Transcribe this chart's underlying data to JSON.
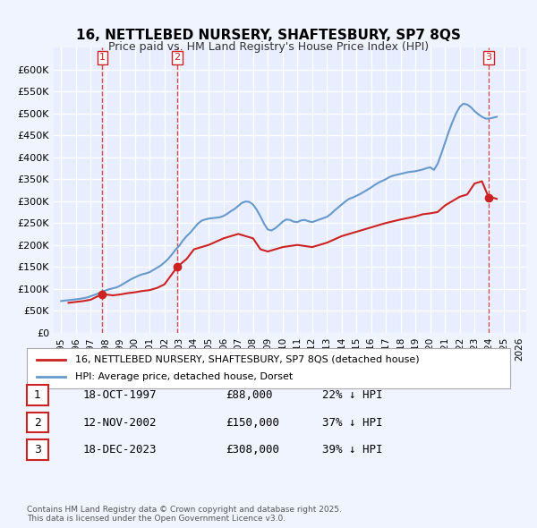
{
  "title": "16, NETTLEBED NURSERY, SHAFTESBURY, SP7 8QS",
  "subtitle": "Price paid vs. HM Land Registry's House Price Index (HPI)",
  "ylabel": "",
  "ylim": [
    0,
    650000
  ],
  "yticks": [
    0,
    50000,
    100000,
    150000,
    200000,
    250000,
    300000,
    350000,
    400000,
    450000,
    500000,
    550000,
    600000
  ],
  "ytick_labels": [
    "£0",
    "£50K",
    "£100K",
    "£150K",
    "£200K",
    "£250K",
    "£300K",
    "£350K",
    "£400K",
    "£450K",
    "£500K",
    "£550K",
    "£600K"
  ],
  "background_color": "#f0f4ff",
  "plot_bg_color": "#e8eeff",
  "grid_color": "#ffffff",
  "hpi_color": "#6699cc",
  "price_color": "#cc2222",
  "transaction_marker_color": "#cc2222",
  "legend_label_price": "16, NETTLEBED NURSERY, SHAFTESBURY, SP7 8QS (detached house)",
  "legend_label_hpi": "HPI: Average price, detached house, Dorset",
  "transactions": [
    {
      "num": 1,
      "date_label": "18-OCT-1997",
      "price": 88000,
      "pct": "22%",
      "x_year": 1997.79
    },
    {
      "num": 2,
      "date_label": "12-NOV-2002",
      "price": 150000,
      "pct": "37%",
      "x_year": 2002.87
    },
    {
      "num": 3,
      "date_label": "18-DEC-2023",
      "price": 308000,
      "pct": "39%",
      "x_year": 2023.96
    }
  ],
  "footer": "Contains HM Land Registry data © Crown copyright and database right 2025.\nThis data is licensed under the Open Government Licence v3.0.",
  "hpi_data": {
    "years": [
      1995.0,
      1995.25,
      1995.5,
      1995.75,
      1996.0,
      1996.25,
      1996.5,
      1996.75,
      1997.0,
      1997.25,
      1997.5,
      1997.75,
      1998.0,
      1998.25,
      1998.5,
      1998.75,
      1999.0,
      1999.25,
      1999.5,
      1999.75,
      2000.0,
      2000.25,
      2000.5,
      2000.75,
      2001.0,
      2001.25,
      2001.5,
      2001.75,
      2002.0,
      2002.25,
      2002.5,
      2002.75,
      2003.0,
      2003.25,
      2003.5,
      2003.75,
      2004.0,
      2004.25,
      2004.5,
      2004.75,
      2005.0,
      2005.25,
      2005.5,
      2005.75,
      2006.0,
      2006.25,
      2006.5,
      2006.75,
      2007.0,
      2007.25,
      2007.5,
      2007.75,
      2008.0,
      2008.25,
      2008.5,
      2008.75,
      2009.0,
      2009.25,
      2009.5,
      2009.75,
      2010.0,
      2010.25,
      2010.5,
      2010.75,
      2011.0,
      2011.25,
      2011.5,
      2011.75,
      2012.0,
      2012.25,
      2012.5,
      2012.75,
      2013.0,
      2013.25,
      2013.5,
      2013.75,
      2014.0,
      2014.25,
      2014.5,
      2014.75,
      2015.0,
      2015.25,
      2015.5,
      2015.75,
      2016.0,
      2016.25,
      2016.5,
      2016.75,
      2017.0,
      2017.25,
      2017.5,
      2017.75,
      2018.0,
      2018.25,
      2018.5,
      2018.75,
      2019.0,
      2019.25,
      2019.5,
      2019.75,
      2020.0,
      2020.25,
      2020.5,
      2020.75,
      2021.0,
      2021.25,
      2021.5,
      2021.75,
      2022.0,
      2022.25,
      2022.5,
      2022.75,
      2023.0,
      2023.25,
      2023.5,
      2023.75,
      2024.0,
      2024.25,
      2024.5
    ],
    "values": [
      72000,
      73000,
      74000,
      75000,
      76000,
      77000,
      78500,
      80000,
      83000,
      86000,
      89000,
      93000,
      96000,
      99000,
      101000,
      103000,
      107000,
      112000,
      117000,
      122000,
      126000,
      130000,
      133000,
      135000,
      138000,
      143000,
      148000,
      153000,
      160000,
      168000,
      178000,
      189000,
      198000,
      210000,
      220000,
      228000,
      238000,
      248000,
      255000,
      258000,
      260000,
      261000,
      262000,
      263000,
      266000,
      271000,
      277000,
      282000,
      289000,
      296000,
      299000,
      298000,
      292000,
      280000,
      265000,
      248000,
      235000,
      233000,
      238000,
      245000,
      253000,
      258000,
      257000,
      253000,
      252000,
      256000,
      257000,
      254000,
      252000,
      255000,
      258000,
      261000,
      264000,
      270000,
      278000,
      285000,
      292000,
      299000,
      305000,
      308000,
      312000,
      316000,
      321000,
      326000,
      331000,
      337000,
      342000,
      346000,
      350000,
      355000,
      358000,
      360000,
      362000,
      364000,
      366000,
      367000,
      368000,
      370000,
      372000,
      375000,
      377000,
      371000,
      385000,
      408000,
      433000,
      458000,
      480000,
      500000,
      515000,
      522000,
      520000,
      514000,
      505000,
      498000,
      492000,
      488000,
      488000,
      490000,
      492000
    ]
  },
  "price_data": {
    "years": [
      1995.5,
      1996.0,
      1996.5,
      1997.0,
      1997.79,
      1998.5,
      1999.0,
      1999.5,
      2000.0,
      2000.5,
      2001.0,
      2001.5,
      2002.0,
      2002.87,
      2003.5,
      2004.0,
      2005.0,
      2006.0,
      2007.0,
      2008.0,
      2008.5,
      2009.0,
      2010.0,
      2011.0,
      2012.0,
      2013.0,
      2014.0,
      2015.0,
      2016.0,
      2017.0,
      2018.0,
      2019.0,
      2019.5,
      2020.0,
      2020.5,
      2021.0,
      2021.5,
      2022.0,
      2022.5,
      2023.0,
      2023.5,
      2023.96,
      2024.0,
      2024.5
    ],
    "values": [
      68000,
      70000,
      72000,
      75000,
      88000,
      85000,
      87000,
      90000,
      92000,
      95000,
      97000,
      102000,
      110000,
      150000,
      168000,
      190000,
      200000,
      215000,
      225000,
      215000,
      190000,
      185000,
      195000,
      200000,
      195000,
      205000,
      220000,
      230000,
      240000,
      250000,
      258000,
      265000,
      270000,
      272000,
      275000,
      290000,
      300000,
      310000,
      315000,
      340000,
      345000,
      308000,
      310000,
      305000
    ]
  },
  "xlim": [
    1994.5,
    2026.5
  ],
  "xticks": [
    1995,
    1996,
    1997,
    1998,
    1999,
    2000,
    2001,
    2002,
    2003,
    2004,
    2005,
    2006,
    2007,
    2008,
    2009,
    2010,
    2011,
    2012,
    2013,
    2014,
    2015,
    2016,
    2017,
    2018,
    2019,
    2020,
    2021,
    2022,
    2023,
    2024,
    2025,
    2026
  ]
}
